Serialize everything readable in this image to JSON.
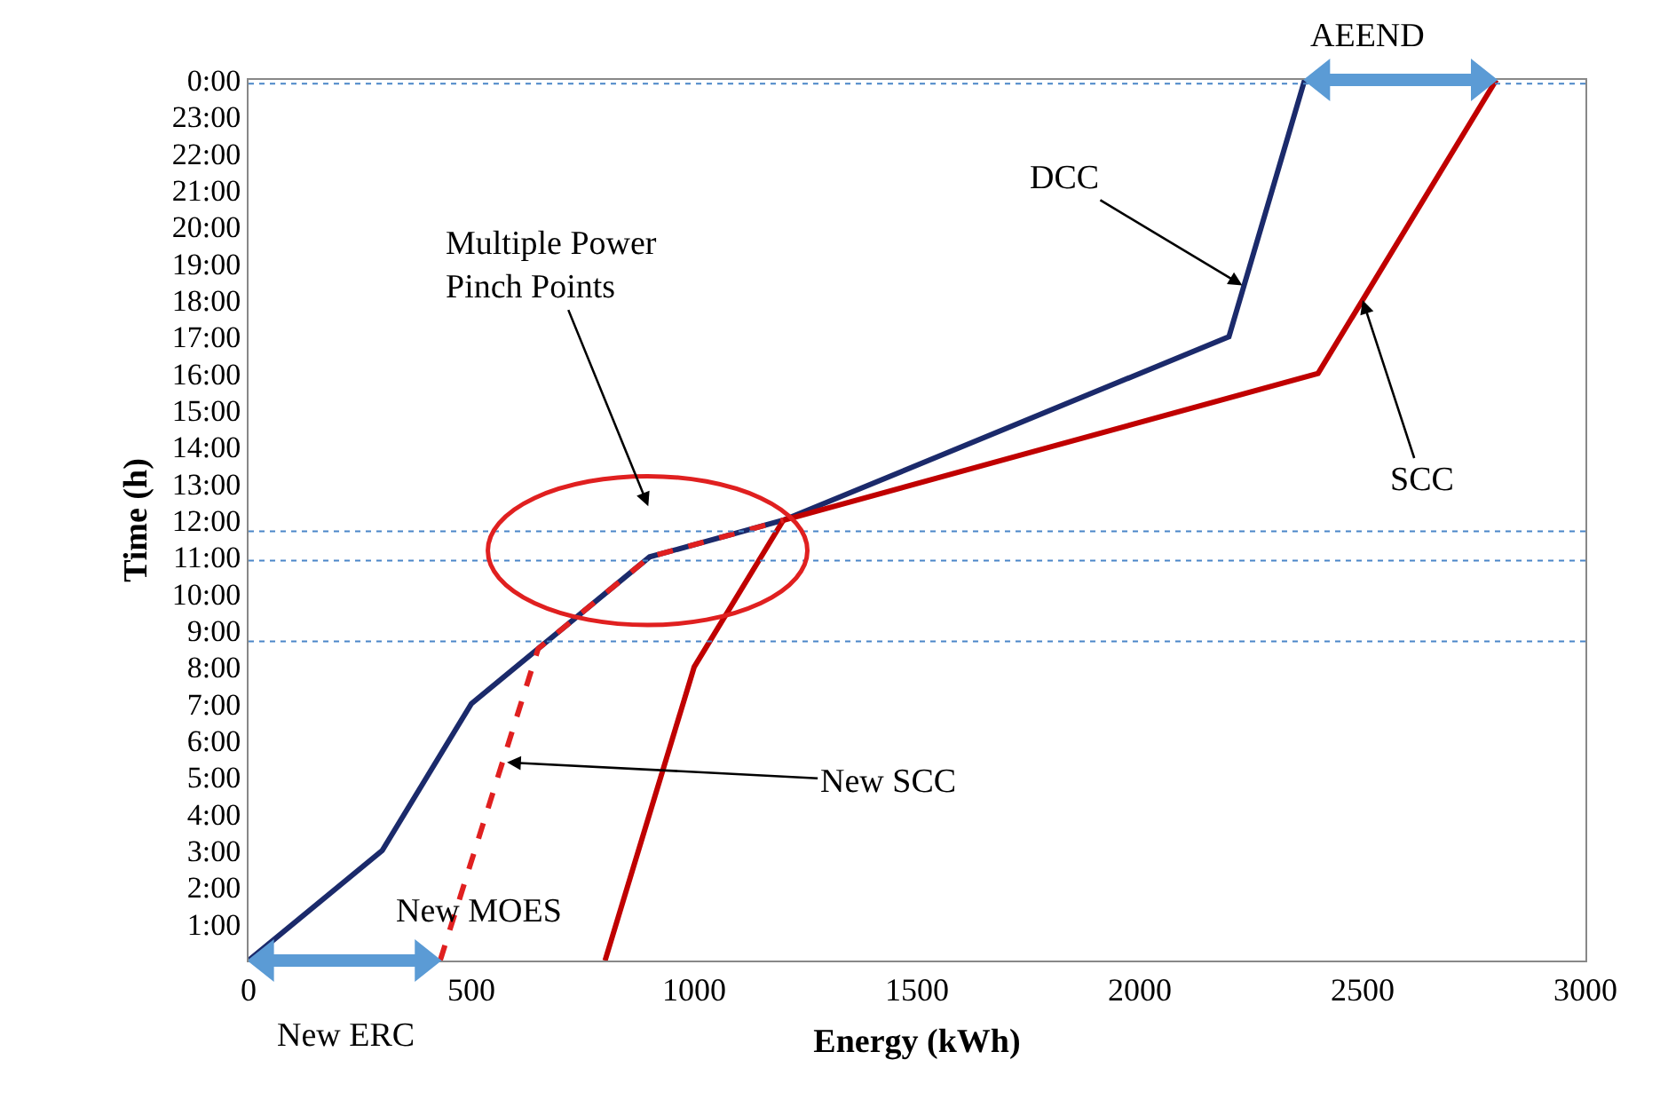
{
  "chart_data": {
    "type": "line",
    "xlabel": "Energy (kWh)",
    "ylabel": "Time (h)",
    "xlim": [
      0,
      3000
    ],
    "xticks": [
      0,
      500,
      1000,
      1500,
      2000,
      2500,
      3000
    ],
    "ylim": [
      0,
      24
    ],
    "yticks": [
      {
        "value": 1,
        "label": "1:00"
      },
      {
        "value": 2,
        "label": "2:00"
      },
      {
        "value": 3,
        "label": "3:00"
      },
      {
        "value": 4,
        "label": "4:00"
      },
      {
        "value": 5,
        "label": "5:00"
      },
      {
        "value": 6,
        "label": "6:00"
      },
      {
        "value": 7,
        "label": "7:00"
      },
      {
        "value": 8,
        "label": "8:00"
      },
      {
        "value": 9,
        "label": "9:00"
      },
      {
        "value": 10,
        "label": "10:00"
      },
      {
        "value": 11,
        "label": "11:00"
      },
      {
        "value": 12,
        "label": "12:00"
      },
      {
        "value": 13,
        "label": "13:00"
      },
      {
        "value": 14,
        "label": "14:00"
      },
      {
        "value": 15,
        "label": "15:00"
      },
      {
        "value": 16,
        "label": "16:00"
      },
      {
        "value": 17,
        "label": "17:00"
      },
      {
        "value": 18,
        "label": "18:00"
      },
      {
        "value": 19,
        "label": "19:00"
      },
      {
        "value": 20,
        "label": "20:00"
      },
      {
        "value": 21,
        "label": "21:00"
      },
      {
        "value": 22,
        "label": "22:00"
      },
      {
        "value": 23,
        "label": "23:00"
      },
      {
        "value": 24,
        "label": "0:00"
      }
    ],
    "series": [
      {
        "color": "#1b2a6b",
        "x": [
          0,
          300,
          500,
          900,
          1200,
          2200,
          2370
        ],
        "values": [
          0,
          3,
          7,
          11,
          12,
          17,
          24
        ],
        "line_style": "solid"
      },
      {
        "color": "#c00000",
        "x": [
          800,
          1000,
          1200,
          2400,
          2800
        ],
        "values": [
          0,
          8,
          12,
          16,
          24
        ],
        "line_style": "solid"
      },
      {
        "color": "#e02020",
        "x": [
          430,
          650,
          900,
          1200
        ],
        "values": [
          0,
          8.5,
          11,
          12
        ],
        "line_style": "dashed"
      }
    ],
    "ref_lines": [
      {
        "axis": "y",
        "value": 23.9,
        "color": "#4a86c8",
        "line_style": "dotted"
      },
      {
        "axis": "y",
        "value": 11.7,
        "color": "#4a86c8",
        "line_style": "dotted"
      },
      {
        "axis": "y",
        "value": 10.9,
        "color": "#4a86c8",
        "line_style": "dotted"
      },
      {
        "axis": "y",
        "value": 8.7,
        "color": "#4a86c8",
        "line_style": "dotted"
      }
    ],
    "annotations": [
      {
        "text": "DCC",
        "x": 2230,
        "y": 18.4
      },
      {
        "text": "SCC",
        "x": 2500,
        "y": 18
      },
      {
        "text": "New SCC",
        "x": 580,
        "y": 5.4
      },
      "Multiple Power\nPinch Points",
      {
        "text": "New MOES",
        "x": 430,
        "y": 0
      },
      {
        "text": "AEEND",
        "x": 2585,
        "y": 24
      },
      "New ERC"
    ],
    "marker": "none"
  }
}
